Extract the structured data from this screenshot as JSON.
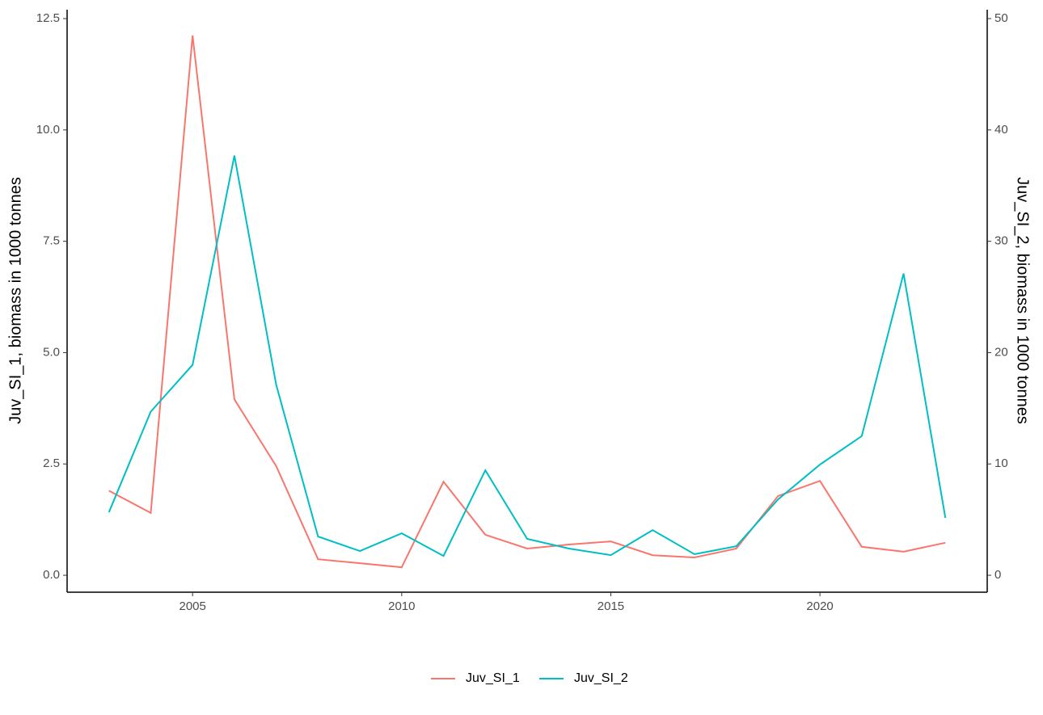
{
  "chart_data": {
    "type": "line",
    "ylabel": "Juv_SI_1, biomass in 1000 tonnes",
    "y2label": "Juv_SI_2, biomass in 1000 tonnes",
    "x": [
      2003,
      2004,
      2005,
      2006,
      2007,
      2008,
      2009,
      2010,
      2011,
      2012,
      2013,
      2014,
      2015,
      2016,
      2017,
      2018,
      2019,
      2020,
      2021,
      2022,
      2023
    ],
    "xlim": [
      2002,
      2024
    ],
    "xticks": [
      2005,
      2010,
      2015,
      2020
    ],
    "ylim": [
      -0.38,
      12.7
    ],
    "yticks": [
      {
        "value": 0,
        "label": "0.0"
      },
      2.5,
      {
        "value": 5,
        "label": "5.0"
      },
      7.5,
      {
        "value": 10,
        "label": "10.0"
      },
      12.5
    ],
    "y2lim": [
      -1.52,
      50.8
    ],
    "y2ticks": [
      0,
      10,
      20,
      30,
      40,
      50
    ],
    "legend": "bottom",
    "series": [
      {
        "name": "Juv_SI_1",
        "color": "#F8766D",
        "values": [
          1.9,
          1.4,
          12.12,
          3.95,
          2.45,
          0.36,
          0.27,
          0.18,
          2.1,
          0.91,
          0.6,
          0.69,
          0.76,
          0.45,
          0.4,
          0.6,
          1.78,
          2.12,
          0.64,
          0.53,
          0.73
        ]
      },
      {
        "name": "Juv_SI_2",
        "color": "#00BFC4",
        "axis": "y2",
        "values": [
          5.66,
          14.7,
          18.9,
          37.7,
          17.1,
          3.48,
          2.18,
          3.77,
          1.74,
          9.43,
          3.27,
          2.4,
          1.81,
          4.06,
          1.89,
          2.61,
          6.82,
          9.94,
          12.5,
          27.1,
          5.15
        ]
      }
    ]
  }
}
